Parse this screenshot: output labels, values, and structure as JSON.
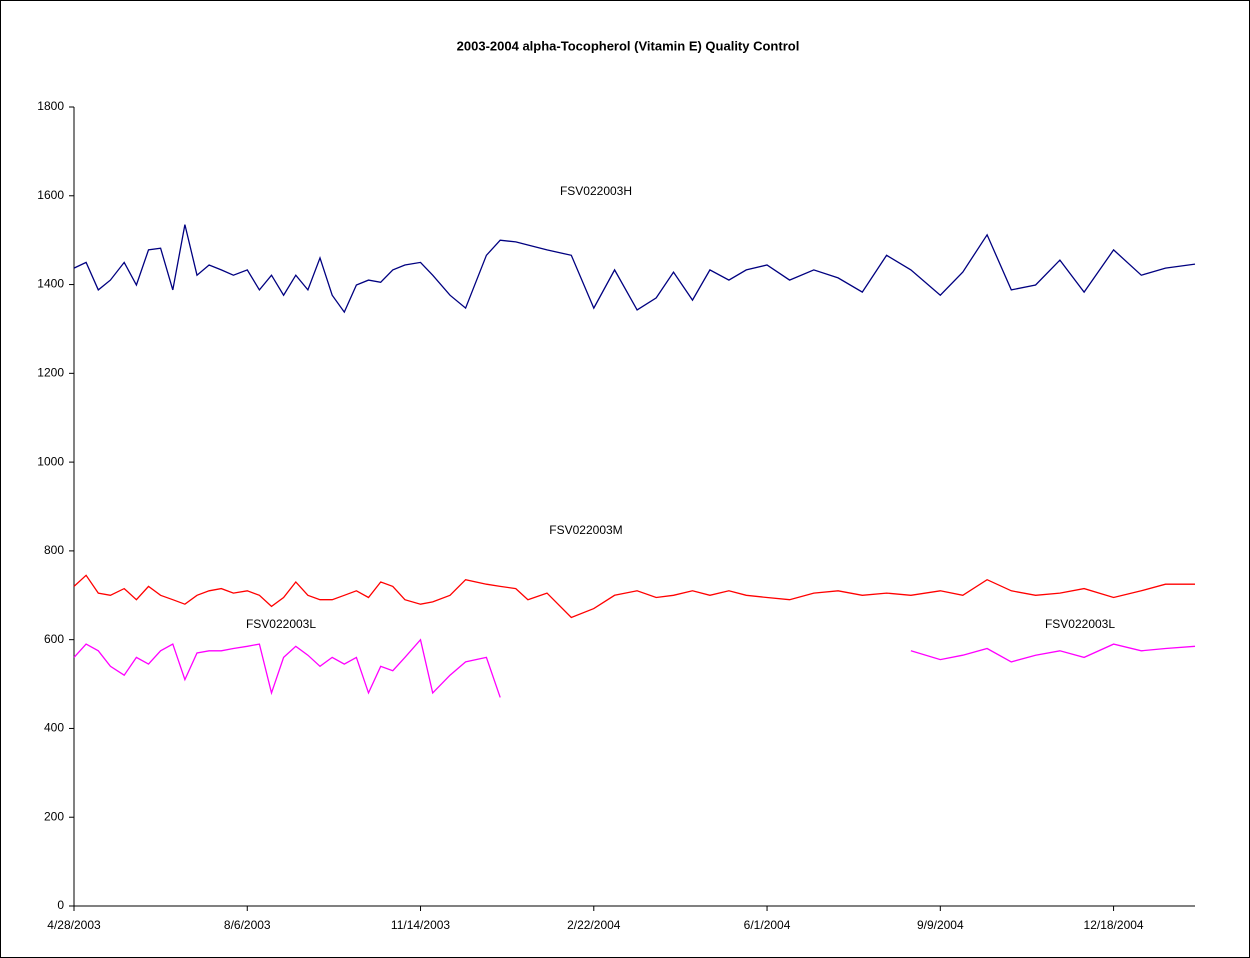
{
  "chart_data": {
    "type": "line",
    "title": "2003-2004 alpha-Tocopherol (Vitamin E) Quality Control",
    "x": [
      "4/28/2003",
      "5/5/2003",
      "5/12/2003",
      "5/19/2003",
      "5/27/2003",
      "6/3/2003",
      "6/10/2003",
      "6/17/2003",
      "6/24/2003",
      "7/1/2003",
      "7/8/2003",
      "7/15/2003",
      "7/22/2003",
      "7/29/2003",
      "8/6/2003",
      "8/13/2003",
      "8/20/2003",
      "8/27/2003",
      "9/3/2003",
      "9/10/2003",
      "9/17/2003",
      "9/24/2003",
      "10/1/2003",
      "10/8/2003",
      "10/15/2003",
      "10/22/2003",
      "10/29/2003",
      "11/5/2003",
      "11/14/2003",
      "11/21/2003",
      "12/1/2003",
      "12/10/2003",
      "12/22/2003",
      "12/30/2003",
      "1/8/2004",
      "1/15/2004",
      "1/26/2004",
      "2/9/2004",
      "2/22/2004",
      "3/5/2004",
      "3/18/2004",
      "3/29/2004",
      "4/8/2004",
      "4/19/2004",
      "4/29/2004",
      "5/10/2004",
      "5/20/2004",
      "6/1/2004",
      "6/14/2004",
      "6/28/2004",
      "7/12/2004",
      "7/26/2004",
      "8/9/2004",
      "8/23/2004",
      "9/9/2004",
      "9/22/2004",
      "10/6/2004",
      "10/20/2004",
      "11/3/2004",
      "11/17/2004",
      "12/1/2004",
      "12/18/2004",
      "1/3/2005",
      "1/17/2005",
      "2/3/2005"
    ],
    "series": [
      {
        "name": "FSV022003H",
        "color": "#000080",
        "values": [
          1437,
          1450,
          1388,
          1410,
          1450,
          1399,
          1478,
          1482,
          1388,
          1535,
          1421,
          1444,
          1433,
          1421,
          1433,
          1388,
          1421,
          1376,
          1421,
          1388,
          1460,
          1376,
          1338,
          1399,
          1410,
          1405,
          1433,
          1444,
          1450,
          1421,
          1376,
          1347,
          1466,
          1500,
          1496,
          1489,
          1478,
          1466,
          1347,
          1433,
          1343,
          1370,
          1428,
          1365,
          1433,
          1410,
          1433,
          1444,
          1410,
          1433,
          1415,
          1383,
          1466,
          1433,
          1376,
          1428,
          1512,
          1388,
          1399,
          1455,
          1383,
          1478,
          1421,
          1437,
          1446
        ]
      },
      {
        "name": "FSV022003M",
        "color": "#ff0000",
        "values": [
          720,
          745,
          705,
          700,
          715,
          690,
          720,
          700,
          690,
          680,
          700,
          710,
          715,
          705,
          710,
          700,
          675,
          695,
          730,
          700,
          690,
          690,
          700,
          710,
          695,
          730,
          720,
          690,
          680,
          685,
          700,
          735,
          725,
          720,
          715,
          690,
          705,
          650,
          670,
          700,
          710,
          695,
          700,
          710,
          700,
          710,
          700,
          695,
          690,
          705,
          710,
          700,
          705,
          700,
          710,
          700,
          735,
          710,
          700,
          705,
          715,
          695,
          710,
          725,
          725
        ]
      },
      {
        "name": "FSV022003L",
        "color": "#ff00ff",
        "values": [
          560,
          590,
          575,
          540,
          520,
          560,
          545,
          575,
          590,
          510,
          570,
          575,
          575,
          580,
          585,
          590,
          480,
          560,
          585,
          565,
          540,
          560,
          545,
          560,
          480,
          540,
          530,
          560,
          600,
          480,
          520,
          550,
          560,
          470,
          null,
          null,
          null,
          null,
          null,
          null,
          null,
          null,
          null,
          null,
          null,
          null,
          null,
          null,
          null,
          null,
          null,
          null,
          null,
          575,
          555,
          565,
          580,
          550,
          565,
          575,
          560,
          590,
          575,
          580,
          585
        ]
      }
    ],
    "xlim": [
      "4/28/2003",
      "2/3/2005"
    ],
    "xticks": [
      "4/28/2003",
      "8/6/2003",
      "11/14/2003",
      "2/22/2004",
      "6/1/2004",
      "9/9/2004",
      "12/18/2004"
    ],
    "ylim": [
      0,
      1800
    ],
    "yticks": [
      0,
      200,
      400,
      600,
      800,
      1000,
      1200,
      1400,
      1600,
      1800
    ],
    "grid": false
  }
}
